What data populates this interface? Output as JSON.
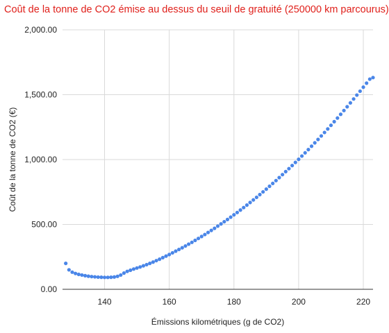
{
  "chart_data": {
    "type": "scatter",
    "title": "Coût de la tonne de CO2 émise au dessus du seuil de gratuité (250000 km parcourus)",
    "xlabel": "Émissions kilométriques (g de CO2)",
    "ylabel": "Coût de la tonne de CO2 (€)",
    "xlim": [
      127,
      223
    ],
    "ylim": [
      0,
      2000
    ],
    "x_ticks": [
      140,
      160,
      180,
      200,
      220
    ],
    "x_tick_labels": [
      "140",
      "160",
      "180",
      "200",
      "220"
    ],
    "y_ticks": [
      0,
      500,
      1000,
      1500,
      2000
    ],
    "y_tick_labels": [
      "0.00",
      "500.00",
      "1,000.00",
      "1,500.00",
      "2,000.00"
    ],
    "grid": true,
    "legend": "none",
    "series": [
      {
        "color": "#4a86e8",
        "x": [
          128,
          129,
          130,
          131,
          132,
          133,
          134,
          135,
          136,
          137,
          138,
          139,
          140,
          141,
          142,
          143,
          144,
          145,
          146,
          147,
          148,
          149,
          150,
          151,
          152,
          153,
          154,
          155,
          156,
          157,
          158,
          159,
          160,
          161,
          162,
          163,
          164,
          165,
          166,
          167,
          168,
          169,
          170,
          171,
          172,
          173,
          174,
          175,
          176,
          177,
          178,
          179,
          180,
          181,
          182,
          183,
          184,
          185,
          186,
          187,
          188,
          189,
          190,
          191,
          192,
          193,
          194,
          195,
          196,
          197,
          198,
          199,
          200,
          201,
          202,
          203,
          204,
          205,
          206,
          207,
          208,
          209,
          210,
          211,
          212,
          213,
          214,
          215,
          216,
          217,
          218,
          219,
          220,
          221,
          222,
          223
        ],
        "y": [
          200,
          150,
          132,
          122,
          115,
          110,
          105,
          101,
          98,
          96,
          94,
          93,
          92,
          92,
          93,
          95,
          100,
          110,
          125,
          138,
          147,
          156,
          164,
          172,
          181,
          190,
          200,
          210,
          221,
          232,
          244,
          256,
          268,
          281,
          294,
          307,
          320,
          334,
          348,
          362,
          377,
          392,
          407,
          422,
          438,
          454,
          470,
          487,
          504,
          521,
          538,
          556,
          574,
          592,
          611,
          630,
          649,
          669,
          689,
          709,
          730,
          751,
          772,
          794,
          816,
          838,
          861,
          884,
          907,
          930,
          954,
          978,
          1002,
          1027,
          1052,
          1077,
          1103,
          1129,
          1155,
          1182,
          1209,
          1236,
          1264,
          1292,
          1320,
          1349,
          1378,
          1407,
          1437,
          1467,
          1497,
          1527,
          1558,
          1589,
          1620,
          1632
        ]
      }
    ]
  }
}
